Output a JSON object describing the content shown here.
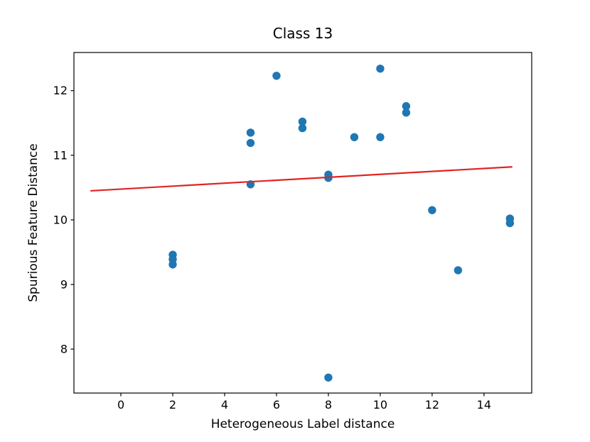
{
  "figure": {
    "background": "#ffffff",
    "text_color": "#000000",
    "spine_color": "#000000"
  },
  "chart_data": {
    "type": "scatter",
    "title": "Class 13",
    "xlabel": "Heterogeneous Label distance",
    "ylabel": "Spurious Feature Distance",
    "xlim": [
      -1.81,
      15.84
    ],
    "ylim": [
      7.32,
      12.59
    ],
    "xticks": [
      0,
      2,
      4,
      6,
      8,
      10,
      12,
      14
    ],
    "yticks": [
      8,
      9,
      10,
      11,
      12
    ],
    "grid": false,
    "legend": null,
    "series": [
      {
        "name": "scatter-points",
        "type": "scatter",
        "color": "#1f77b4",
        "marker_radius": 5.7,
        "points": [
          [
            2,
            9.46
          ],
          [
            2,
            9.39
          ],
          [
            2,
            9.31
          ],
          [
            5,
            11.35
          ],
          [
            5,
            11.19
          ],
          [
            5,
            10.55
          ],
          [
            6,
            12.23
          ],
          [
            7,
            11.52
          ],
          [
            7,
            11.42
          ],
          [
            8,
            10.7
          ],
          [
            8,
            10.65
          ],
          [
            8,
            7.56
          ],
          [
            9,
            11.28
          ],
          [
            10,
            12.34
          ],
          [
            10,
            11.28
          ],
          [
            11,
            11.76
          ],
          [
            11,
            11.66
          ],
          [
            12,
            10.15
          ],
          [
            13,
            9.22
          ],
          [
            15,
            10.02
          ],
          [
            15,
            9.95
          ]
        ]
      },
      {
        "name": "trend-line",
        "type": "line",
        "color": "#e02424",
        "line_width": 2.2,
        "points": [
          [
            -1.15,
            10.45
          ],
          [
            15.07,
            10.82
          ]
        ]
      }
    ]
  }
}
